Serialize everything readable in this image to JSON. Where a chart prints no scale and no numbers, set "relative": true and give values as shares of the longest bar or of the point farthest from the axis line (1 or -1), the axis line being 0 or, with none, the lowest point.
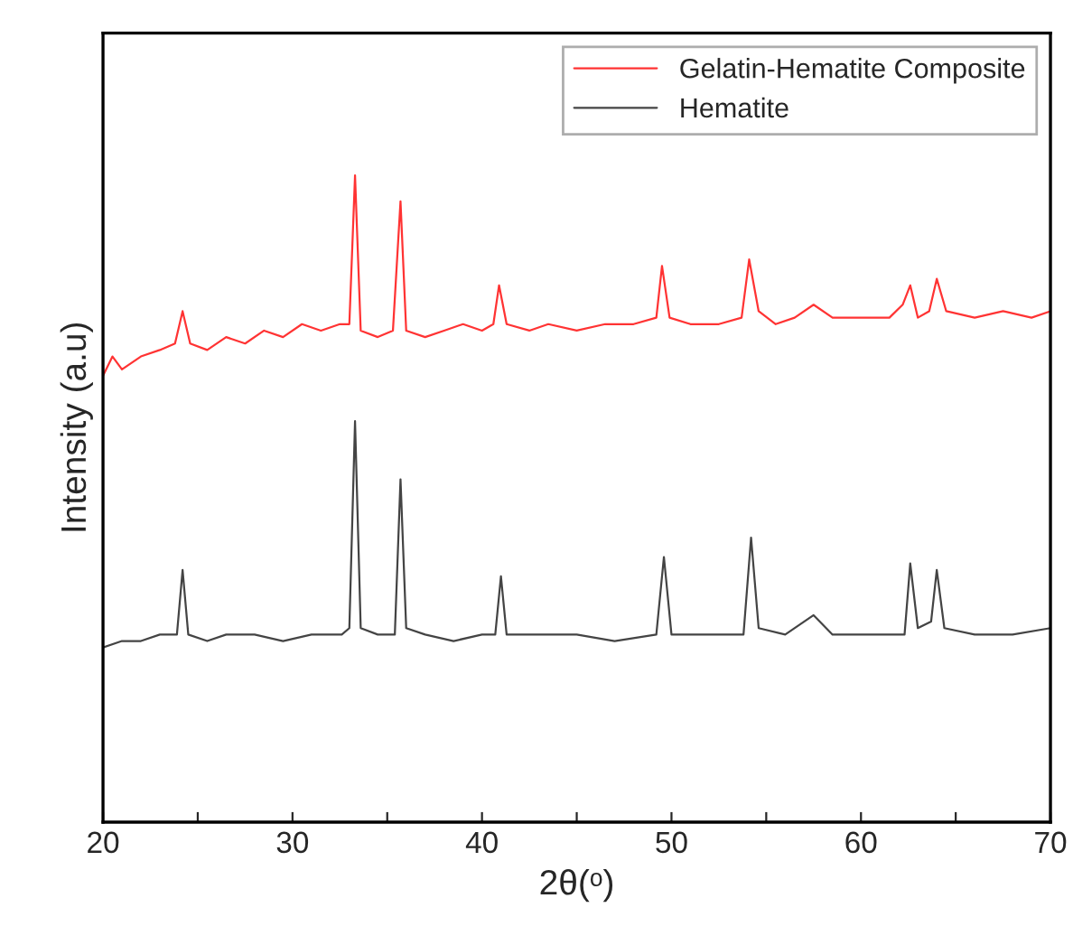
{
  "chart_data": {
    "type": "line",
    "relative": true,
    "xlabel": "2θ(ᵒ)",
    "ylabel": "Intensity (a.u)",
    "xlim": [
      20,
      70
    ],
    "xticks": [
      20,
      {
        "value": 25,
        "label": null
      },
      30,
      {
        "value": 35,
        "label": null
      },
      40,
      {
        "value": 45,
        "label": null
      },
      50,
      {
        "value": 55,
        "label": null
      },
      60,
      {
        "value": 65,
        "label": null
      },
      70
    ],
    "legend": "top right",
    "grid": false,
    "tick_labels": "x",
    "series": [
      {
        "name": "Gelatin-Hematite Composite",
        "color": "#ff3333",
        "x": [
          20,
          20.5,
          21,
          22,
          23,
          23.8,
          24.2,
          24.6,
          25.5,
          26.5,
          27.5,
          28.5,
          29.5,
          30.5,
          31.5,
          32.5,
          33.0,
          33.3,
          33.6,
          34.5,
          35.3,
          35.7,
          36.0,
          37,
          38,
          39,
          40,
          40.6,
          40.9,
          41.3,
          42.5,
          43.5,
          45,
          46.5,
          48,
          49.2,
          49.5,
          49.9,
          51,
          52.5,
          53.7,
          54.1,
          54.6,
          55.5,
          56.5,
          57.5,
          58.5,
          60,
          61.5,
          62.2,
          62.6,
          63.0,
          63.6,
          64.0,
          64.5,
          66,
          67.5,
          69,
          70
        ],
        "values": [
          0.69,
          0.72,
          0.7,
          0.72,
          0.73,
          0.74,
          0.79,
          0.74,
          0.73,
          0.75,
          0.74,
          0.76,
          0.75,
          0.77,
          0.76,
          0.77,
          0.77,
          1.0,
          0.76,
          0.75,
          0.76,
          0.96,
          0.76,
          0.75,
          0.76,
          0.77,
          0.76,
          0.77,
          0.83,
          0.77,
          0.76,
          0.77,
          0.76,
          0.77,
          0.77,
          0.78,
          0.86,
          0.78,
          0.77,
          0.77,
          0.78,
          0.87,
          0.79,
          0.77,
          0.78,
          0.8,
          0.78,
          0.78,
          0.78,
          0.8,
          0.83,
          0.78,
          0.79,
          0.84,
          0.79,
          0.78,
          0.79,
          0.78,
          0.79
        ]
      },
      {
        "name": "Hematite",
        "color": "#444444",
        "x": [
          20,
          21,
          22,
          23,
          23.9,
          24.2,
          24.5,
          25.5,
          26.5,
          28,
          29.5,
          31,
          32.6,
          33.0,
          33.3,
          33.6,
          34.5,
          35.4,
          35.7,
          36.0,
          37,
          38.5,
          40,
          40.7,
          41.0,
          41.3,
          43,
          45,
          47,
          49.2,
          49.6,
          50.0,
          52,
          53.8,
          54.2,
          54.6,
          56,
          57.5,
          58.5,
          60,
          62.3,
          62.6,
          63.0,
          63.7,
          64.0,
          64.4,
          66,
          68,
          70
        ],
        "values": [
          0.27,
          0.28,
          0.28,
          0.29,
          0.29,
          0.39,
          0.29,
          0.28,
          0.29,
          0.29,
          0.28,
          0.29,
          0.29,
          0.3,
          0.62,
          0.3,
          0.29,
          0.29,
          0.53,
          0.3,
          0.29,
          0.28,
          0.29,
          0.29,
          0.38,
          0.29,
          0.29,
          0.29,
          0.28,
          0.29,
          0.41,
          0.29,
          0.29,
          0.29,
          0.44,
          0.3,
          0.29,
          0.32,
          0.29,
          0.29,
          0.29,
          0.4,
          0.3,
          0.31,
          0.39,
          0.3,
          0.29,
          0.29,
          0.3
        ]
      }
    ]
  }
}
